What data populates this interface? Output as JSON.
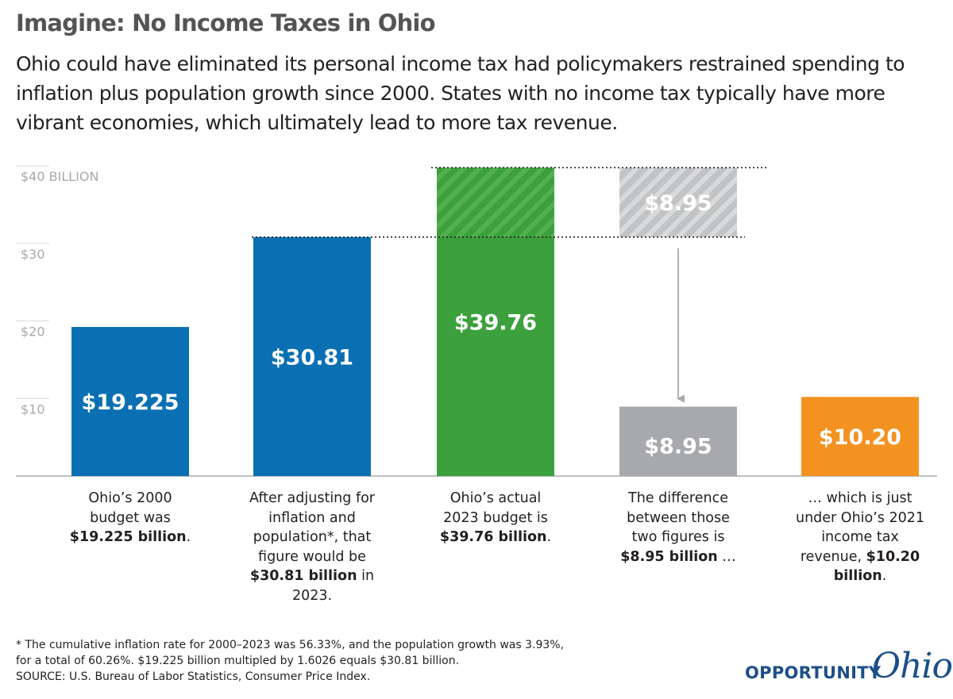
{
  "title": "Imagine: No Income Taxes in Ohio",
  "subtitle": "Ohio could have eliminated its personal income tax had policymakers restrained spending to inflation plus population growth since 2000. States with no income tax typically have more vibrant economies, which ultimately lead to more tax revenue.",
  "chart_data": {
    "type": "bar",
    "ylim": [
      0,
      40
    ],
    "y_ticks": [
      {
        "value": 10,
        "label": "$10"
      },
      {
        "value": 20,
        "label": "$20"
      },
      {
        "value": 30,
        "label": "$30"
      },
      {
        "value": 40,
        "label": "$40 BILLION"
      }
    ],
    "grid": true,
    "bars": [
      {
        "value": 19.225,
        "label": "$19.225",
        "color": "#0a70b3",
        "bottom": 0
      },
      {
        "value": 30.81,
        "label": "$30.81",
        "color": "#0a70b3",
        "bottom": 0
      },
      {
        "value": 39.76,
        "label": "$39.76",
        "color": "#3ca13d",
        "bottom": 0,
        "hatch_from": 30.81
      },
      {
        "value": 8.95,
        "label": "$8.95",
        "color": "#a7a9ac",
        "bottom": 0
      },
      {
        "value": 10.2,
        "label": "$10.20",
        "color": "#f39220",
        "bottom": 0
      }
    ],
    "difference_bar": {
      "bottom": 30.81,
      "top": 39.76,
      "label": "$8.95",
      "color": "#c7c8ca"
    },
    "reference_lines": [
      30.81,
      39.76
    ]
  },
  "captions": [
    {
      "text": "Ohio’s 2000 budget was",
      "bold": "$19.225 billion",
      "after": "."
    },
    {
      "text": "After adjusting for inflation and population*, that figure would be",
      "bold": "$30.81 billion",
      "after": "in 2023."
    },
    {
      "text": "Ohio’s actual 2023 budget is",
      "bold": "$39.76 billion",
      "after": "."
    },
    {
      "text": "The difference between those two figures is",
      "bold": "$8.95 billion",
      "after": " …"
    },
    {
      "text": "… which is just under Ohio’s 2021 income tax revenue,",
      "bold": "$10.20 billion",
      "after": "."
    }
  ],
  "footnote": [
    "* The cumulative inflation rate for 2000–2023 was 56.33%, and the population growth was 3.93%,",
    "for a total of 60.26%. $19.225 billion multipled by 1.6026 equals $30.81 billion.",
    "SOURCE: U.S. Bureau of Labor Statistics, Consumer Price Index."
  ],
  "logo": {
    "text": "OPPORTUNITY",
    "script": "Ohio"
  },
  "colors": {
    "text": "#231f20",
    "title": "#545454",
    "axis_label": "#a7a9ac",
    "gridline": "#d8d8d8"
  }
}
